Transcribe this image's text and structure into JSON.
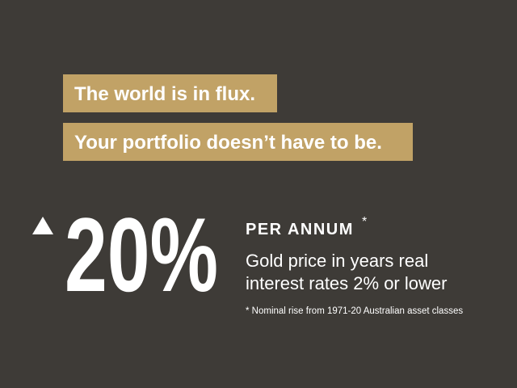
{
  "headline": {
    "lines": [
      "The world is in flux.",
      "Your portfolio doesn’t have to be."
    ]
  },
  "stat": {
    "value_text": "20%",
    "label": "PER ANNUM",
    "label_mark": "*",
    "description": [
      "Gold price in years real",
      "interest rates 2% or lower"
    ],
    "footnote": "* Nominal rise from 1971-20 Australian asset classes"
  }
}
